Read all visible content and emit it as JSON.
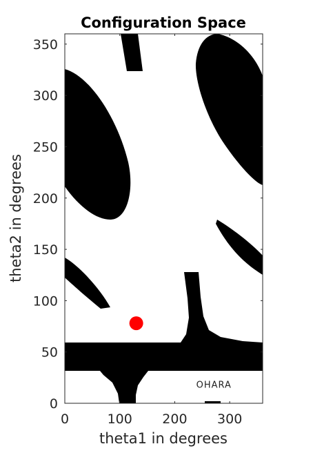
{
  "chart_data": {
    "type": "heatmap",
    "title": "Configuration Space",
    "xlabel": "theta1 in degrees",
    "ylabel": "theta2 in degrees",
    "xlim": [
      0,
      360
    ],
    "ylim": [
      0,
      360
    ],
    "xticks": [
      0,
      100,
      200,
      300
    ],
    "yticks": [
      0,
      50,
      100,
      150,
      200,
      250,
      300,
      350
    ],
    "grid": false,
    "colormap": {
      "free": "#ffffff",
      "obstacle": "#000000"
    },
    "point": {
      "x": 130,
      "y": 78,
      "color": "#ff0000"
    },
    "annotation": {
      "text": "OHARA",
      "x": 255,
      "y": 15
    }
  }
}
